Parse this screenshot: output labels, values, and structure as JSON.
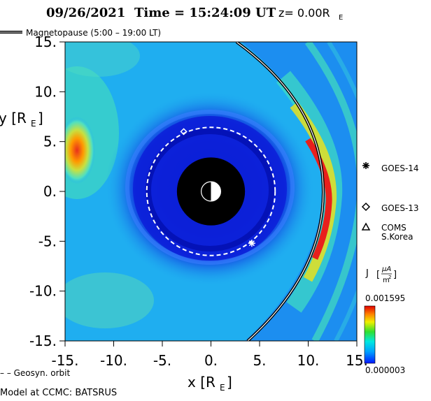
{
  "header": {
    "date": "09/26/2021",
    "time_label": "Time = 15:24:09 UT",
    "z_label": "z= 0.00R",
    "z_sub": "E"
  },
  "legend": {
    "magnetopause_label": "Magnetopause (5:00 – 19:00 LT)",
    "geosyn_label": "– – Geosyn. orbit"
  },
  "satellites": [
    {
      "name": "GOES-14",
      "symbol": "asterisk"
    },
    {
      "name": "GOES-13",
      "symbol": "diamond"
    },
    {
      "name": "COMS",
      "name2": "S.Korea",
      "symbol": "triangle"
    }
  ],
  "colorbar": {
    "label": "J",
    "unit_num": "μA",
    "unit_den": "m",
    "unit_den_exp": "2",
    "max_label": "0.001595",
    "min_label": "0.000003"
  },
  "footer": {
    "model_label": "Model at CCMC: BATSRUS"
  },
  "colors": {
    "background_field": "#1faef0",
    "deep_blue": "#0a18d8",
    "earth_disk": "#000000",
    "orbit_line": "#ffffff",
    "magnetopause_line": "#000000",
    "current_peak": "#e8201c"
  },
  "chart_data": {
    "type": "heatmap",
    "title": "09/26/2021 Time = 15:24:09 UT z= 0.00RE",
    "xlabel": "x [R",
    "xlabel_sub": "E",
    "ylabel": "y [R",
    "ylabel_sub": "E",
    "xlim": [
      -15,
      15
    ],
    "ylim": [
      -15,
      15
    ],
    "x_ticks": [
      -15,
      -10,
      -5,
      0,
      5,
      10,
      15
    ],
    "x_tick_labels": [
      "-15.",
      "-10.",
      "-5.",
      "0.",
      "5.",
      "10.",
      "15."
    ],
    "y_ticks": [
      15,
      10,
      5,
      0,
      -5,
      -10,
      -15
    ],
    "y_tick_labels": [
      "15.",
      "10.",
      "5.",
      "0.",
      "-5.",
      "-10.",
      "-15."
    ],
    "geosynchronous_radius": 6.6,
    "inner_boundary_radius": 3.5,
    "magnetopause_subsolar_x": 11.7,
    "satellite_markers": [
      {
        "name": "GOES-14",
        "x": 4.2,
        "y": -5.2,
        "symbol": "asterisk"
      },
      {
        "name": "GOES-13",
        "x": -2.8,
        "y": 6.0,
        "symbol": "diamond"
      }
    ],
    "colorbar_range": [
      3e-06,
      0.001595
    ]
  }
}
